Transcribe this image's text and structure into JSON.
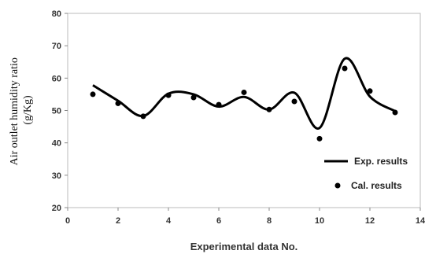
{
  "chart_data": {
    "type": "line",
    "xlabel": "Experimental data No.",
    "ylabel_line1": "Air outlet humidity ratio",
    "ylabel_line2": "(g/Kg)",
    "xlim": [
      0,
      14
    ],
    "ylim": [
      20,
      80
    ],
    "xticks": [
      0,
      2,
      4,
      6,
      8,
      10,
      12,
      14
    ],
    "yticks": [
      20,
      30,
      40,
      50,
      60,
      70,
      80
    ],
    "grid": false,
    "legend_position": "right",
    "series": [
      {
        "name": "Exp. results",
        "type": "line",
        "smooth": true,
        "color": "#000000",
        "x": [
          1,
          2,
          3,
          4,
          5,
          6,
          7,
          8,
          9,
          10,
          11,
          12,
          13
        ],
        "y": [
          57.8,
          53.0,
          48.3,
          55.2,
          55.0,
          51.2,
          54.2,
          50.3,
          55.5,
          44.6,
          66.0,
          54.3,
          49.8
        ]
      },
      {
        "name": "Cal. results",
        "type": "scatter",
        "color": "#000000",
        "x": [
          1,
          2,
          3,
          4,
          5,
          6,
          7,
          8,
          9,
          10,
          11,
          12,
          13
        ],
        "y": [
          55.0,
          52.2,
          48.2,
          54.7,
          54.0,
          51.8,
          55.6,
          50.3,
          52.8,
          41.3,
          63.0,
          56.0,
          49.4
        ]
      }
    ]
  }
}
